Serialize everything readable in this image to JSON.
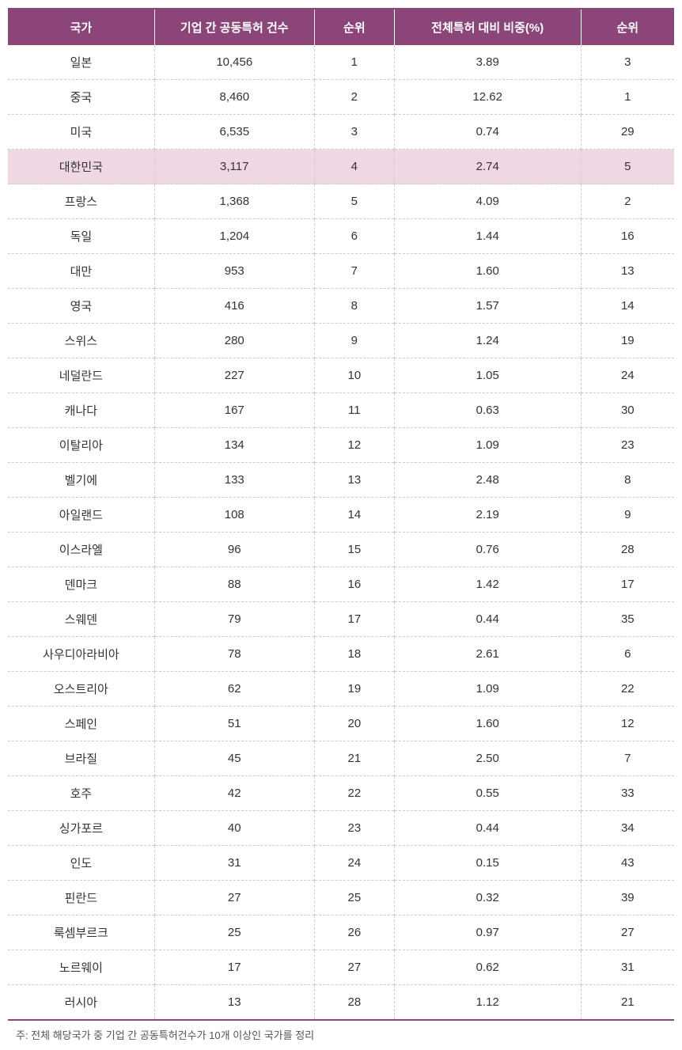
{
  "table": {
    "header_bg": "#8b4578",
    "header_text_color": "#ffffff",
    "border_color": "#8b4578",
    "row_border_color": "#cccccc",
    "highlight_bg": "#efd7e3",
    "text_color": "#333333",
    "columns": [
      {
        "key": "country",
        "label": "국가",
        "width": "22%"
      },
      {
        "key": "count",
        "label": "기업 간 공동특허 건수",
        "width": "24%"
      },
      {
        "key": "rank1",
        "label": "순위",
        "width": "12%"
      },
      {
        "key": "percent",
        "label": "전체특허 대비 비중(%)",
        "width": "28%"
      },
      {
        "key": "rank2",
        "label": "순위",
        "width": "14%"
      }
    ],
    "rows": [
      {
        "country": "일본",
        "count": "10,456",
        "rank1": "1",
        "percent": "3.89",
        "rank2": "3",
        "highlight": false
      },
      {
        "country": "중국",
        "count": "8,460",
        "rank1": "2",
        "percent": "12.62",
        "rank2": "1",
        "highlight": false
      },
      {
        "country": "미국",
        "count": "6,535",
        "rank1": "3",
        "percent": "0.74",
        "rank2": "29",
        "highlight": false
      },
      {
        "country": "대한민국",
        "count": "3,117",
        "rank1": "4",
        "percent": "2.74",
        "rank2": "5",
        "highlight": true
      },
      {
        "country": "프랑스",
        "count": "1,368",
        "rank1": "5",
        "percent": "4.09",
        "rank2": "2",
        "highlight": false
      },
      {
        "country": "독일",
        "count": "1,204",
        "rank1": "6",
        "percent": "1.44",
        "rank2": "16",
        "highlight": false
      },
      {
        "country": "대만",
        "count": "953",
        "rank1": "7",
        "percent": "1.60",
        "rank2": "13",
        "highlight": false
      },
      {
        "country": "영국",
        "count": "416",
        "rank1": "8",
        "percent": "1.57",
        "rank2": "14",
        "highlight": false
      },
      {
        "country": "스위스",
        "count": "280",
        "rank1": "9",
        "percent": "1.24",
        "rank2": "19",
        "highlight": false
      },
      {
        "country": "네덜란드",
        "count": "227",
        "rank1": "10",
        "percent": "1.05",
        "rank2": "24",
        "highlight": false
      },
      {
        "country": "캐나다",
        "count": "167",
        "rank1": "11",
        "percent": "0.63",
        "rank2": "30",
        "highlight": false
      },
      {
        "country": "이탈리아",
        "count": "134",
        "rank1": "12",
        "percent": "1.09",
        "rank2": "23",
        "highlight": false
      },
      {
        "country": "벨기에",
        "count": "133",
        "rank1": "13",
        "percent": "2.48",
        "rank2": "8",
        "highlight": false
      },
      {
        "country": "아일랜드",
        "count": "108",
        "rank1": "14",
        "percent": "2.19",
        "rank2": "9",
        "highlight": false
      },
      {
        "country": "이스라엘",
        "count": "96",
        "rank1": "15",
        "percent": "0.76",
        "rank2": "28",
        "highlight": false
      },
      {
        "country": "덴마크",
        "count": "88",
        "rank1": "16",
        "percent": "1.42",
        "rank2": "17",
        "highlight": false
      },
      {
        "country": "스웨덴",
        "count": "79",
        "rank1": "17",
        "percent": "0.44",
        "rank2": "35",
        "highlight": false
      },
      {
        "country": "사우디아라비아",
        "count": "78",
        "rank1": "18",
        "percent": "2.61",
        "rank2": "6",
        "highlight": false
      },
      {
        "country": "오스트리아",
        "count": "62",
        "rank1": "19",
        "percent": "1.09",
        "rank2": "22",
        "highlight": false
      },
      {
        "country": "스페인",
        "count": "51",
        "rank1": "20",
        "percent": "1.60",
        "rank2": "12",
        "highlight": false
      },
      {
        "country": "브라질",
        "count": "45",
        "rank1": "21",
        "percent": "2.50",
        "rank2": "7",
        "highlight": false
      },
      {
        "country": "호주",
        "count": "42",
        "rank1": "22",
        "percent": "0.55",
        "rank2": "33",
        "highlight": false
      },
      {
        "country": "싱가포르",
        "count": "40",
        "rank1": "23",
        "percent": "0.44",
        "rank2": "34",
        "highlight": false
      },
      {
        "country": "인도",
        "count": "31",
        "rank1": "24",
        "percent": "0.15",
        "rank2": "43",
        "highlight": false
      },
      {
        "country": "핀란드",
        "count": "27",
        "rank1": "25",
        "percent": "0.32",
        "rank2": "39",
        "highlight": false
      },
      {
        "country": "룩셈부르크",
        "count": "25",
        "rank1": "26",
        "percent": "0.97",
        "rank2": "27",
        "highlight": false
      },
      {
        "country": "노르웨이",
        "count": "17",
        "rank1": "27",
        "percent": "0.62",
        "rank2": "31",
        "highlight": false
      },
      {
        "country": "러시아",
        "count": "13",
        "rank1": "28",
        "percent": "1.12",
        "rank2": "21",
        "highlight": false
      }
    ]
  },
  "footnote": "주: 전체 해당국가 중 기업 간 공동특허건수가 10개 이상인 국가를 정리"
}
